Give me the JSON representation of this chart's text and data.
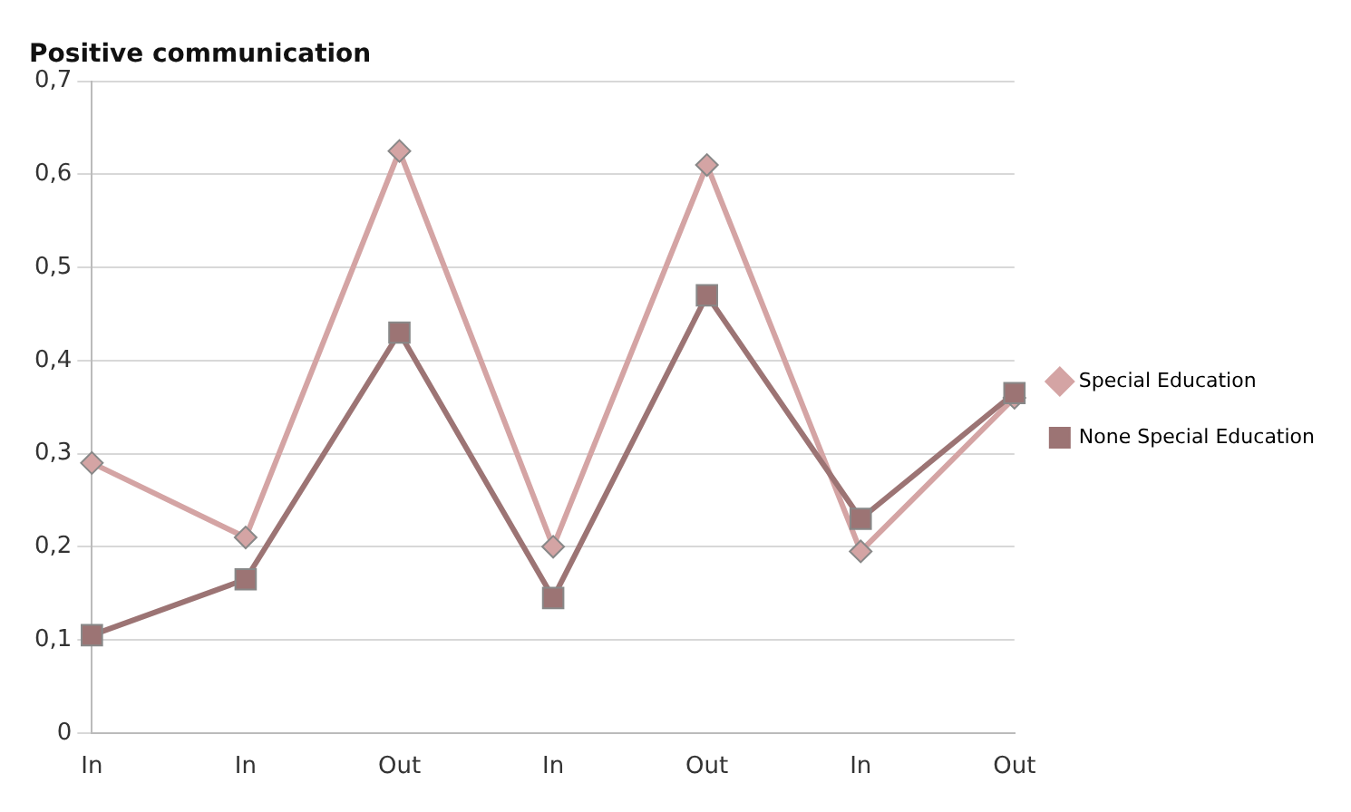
{
  "chart_data": {
    "type": "line",
    "title": "Positive communication",
    "categories": [
      "In",
      "In",
      "Out",
      "In",
      "Out",
      "In",
      "Out"
    ],
    "series": [
      {
        "name": "Special Education",
        "color": "#d4a4a4",
        "marker": "diamond",
        "values": [
          0.29,
          0.21,
          0.625,
          0.2,
          0.61,
          0.195,
          0.36
        ]
      },
      {
        "name": "None Special Education",
        "color": "#9c7474",
        "marker": "square",
        "values": [
          0.105,
          0.165,
          0.43,
          0.145,
          0.47,
          0.23,
          0.365
        ]
      }
    ],
    "ylim": [
      0,
      0.7
    ],
    "yticks": [
      0,
      {
        "value": 0.1,
        "label": "0,1"
      },
      {
        "value": 0.2,
        "label": "0,2"
      },
      {
        "value": 0.3,
        "label": "0,3"
      },
      {
        "value": 0.4,
        "label": "0,4"
      },
      {
        "value": 0.5,
        "label": "0,5"
      },
      {
        "value": 0.6,
        "label": "0,6"
      },
      {
        "value": 0.7,
        "label": "0,7"
      }
    ],
    "grid": "y",
    "legend": "right"
  }
}
